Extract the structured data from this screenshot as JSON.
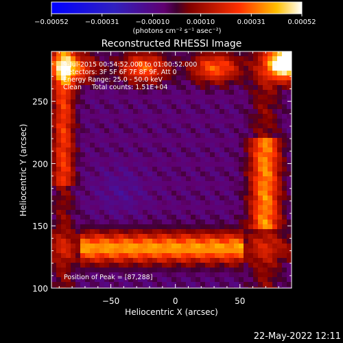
{
  "chart_data": {
    "type": "heatmap",
    "title": "Reconstructed RHESSI Image",
    "xlabel": "Heliocentric X (arcsec)",
    "ylabel": "Heliocentric Y (arcsec)",
    "xlim": [
      -96,
      90
    ],
    "ylim": [
      100,
      290
    ],
    "x_ticks": [
      -50,
      0,
      50
    ],
    "y_ticks": [
      100,
      150,
      200,
      250
    ],
    "x_tick_labels": [
      "−50",
      "0",
      "50"
    ],
    "y_tick_labels": [
      "100",
      "150",
      "200",
      "250"
    ],
    "colorbar": {
      "ticks": [
        "−0.00052",
        "−0.00031",
        "−0.00010",
        "0.00010",
        "0.00031",
        "0.00052"
      ],
      "tick_values": [
        -0.00052,
        -0.00031,
        -0.0001,
        0.0001,
        0.00031,
        0.00052
      ],
      "range": [
        -0.00052,
        0.00052
      ],
      "units_label": "(photons cm⁻² s⁻¹ asec⁻²)"
    },
    "annotations": [
      "9-Jul-2015 00:54:52.000 to 01:00:52.000",
      "Detectors: 3F 5F 6F 7F 8F 9F, Att 0",
      "Energy Range: 25.0 - 50.0 keV",
      "Clean     Total counts: 1.51E+04"
    ],
    "peak_label": "Position of Peak = [87,288]",
    "peak_position": [
      87,
      288
    ],
    "footer_date": "22-May-2022 12:11"
  }
}
